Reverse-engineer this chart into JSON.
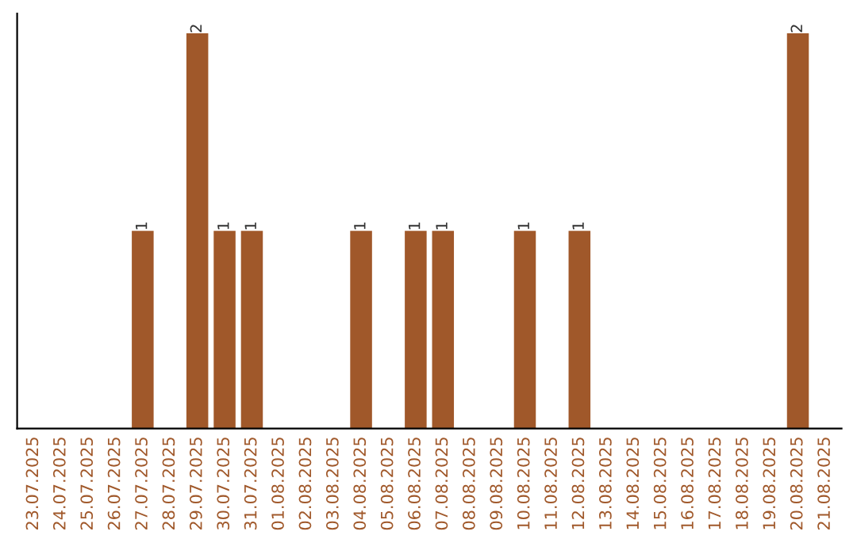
{
  "chart_data": {
    "type": "bar",
    "categories": [
      "23.07.2025",
      "24.07.2025",
      "25.07.2025",
      "26.07.2025",
      "27.07.2025",
      "28.07.2025",
      "29.07.2025",
      "30.07.2025",
      "31.07.2025",
      "01.08.2025",
      "02.08.2025",
      "03.08.2025",
      "04.08.2025",
      "05.08.2025",
      "06.08.2025",
      "07.08.2025",
      "08.08.2025",
      "09.08.2025",
      "10.08.2025",
      "11.08.2025",
      "12.08.2025",
      "13.08.2025",
      "14.08.2025",
      "15.08.2025",
      "16.08.2025",
      "17.08.2025",
      "18.08.2025",
      "19.08.2025",
      "20.08.2025",
      "21.08.2025"
    ],
    "values": [
      0,
      0,
      0,
      0,
      1,
      0,
      2,
      1,
      1,
      0,
      0,
      0,
      1,
      0,
      1,
      1,
      0,
      0,
      1,
      0,
      1,
      0,
      0,
      0,
      0,
      0,
      0,
      0,
      2,
      0
    ],
    "value_labels": [
      null,
      null,
      null,
      null,
      "1",
      null,
      "2",
      "1",
      "1",
      null,
      null,
      null,
      "1",
      null,
      "1",
      "1",
      null,
      null,
      "1",
      null,
      "1",
      null,
      null,
      null,
      null,
      null,
      null,
      null,
      "2",
      null
    ],
    "color": "#a0582a",
    "tick_labels": "x",
    "grid": false,
    "legend": false
  }
}
